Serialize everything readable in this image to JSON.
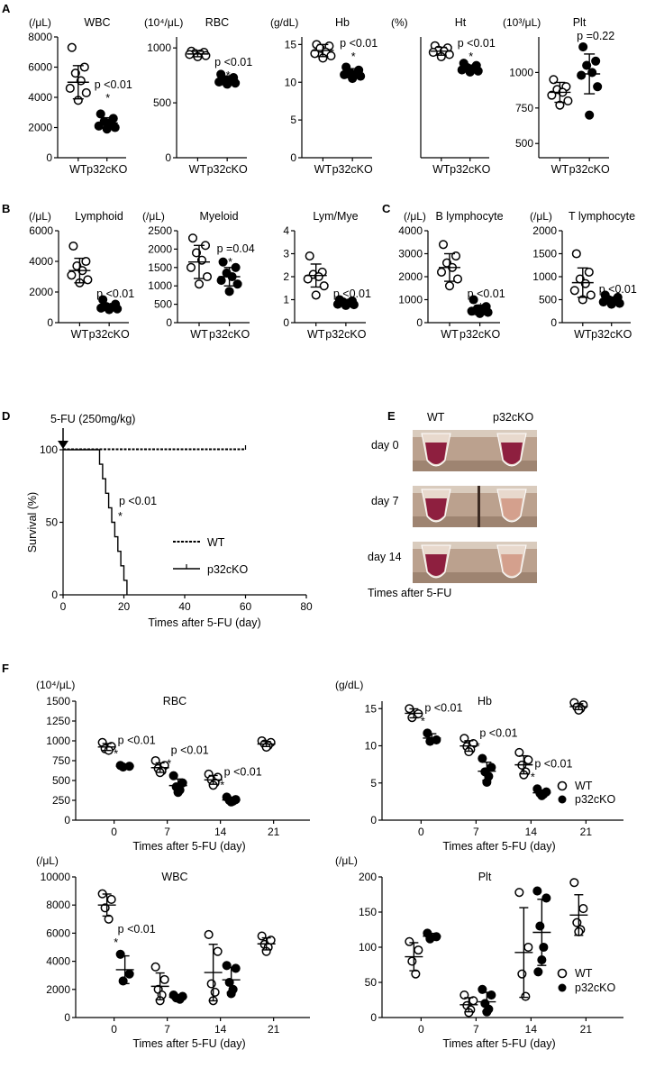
{
  "panel_labels": {
    "A": "A",
    "B": "B",
    "C": "C",
    "D": "D",
    "E": "E",
    "F": "F"
  },
  "panelD": {
    "annotation": "5-FU (250mg/kg)",
    "significance": "p <0.01",
    "star": "*"
  },
  "panelE": {
    "columns": [
      "WT",
      "p32cKO"
    ],
    "rows": [
      "day 0",
      "day 7",
      "day 14"
    ],
    "caption": "Times after 5-FU",
    "colors": {
      "blood": "#8e1f3f",
      "pale": "#d4a08d",
      "strip": "#c8a990"
    }
  },
  "chart_data": [
    {
      "id": "A-WBC",
      "type": "scatter",
      "title": "WBC",
      "unit": "(/μL)",
      "categories": [
        "WT",
        "p32cKO"
      ],
      "ylim": [
        0,
        8000
      ],
      "yticks": [
        0,
        2000,
        4000,
        6000,
        8000
      ],
      "series": [
        {
          "name": "WT",
          "values": [
            7300,
            6000,
            5600,
            5100,
            4600,
            4300,
            3800
          ],
          "mean": 5000,
          "sd": 1100
        },
        {
          "name": "p32cKO",
          "values": [
            2900,
            2600,
            2400,
            2300,
            2100,
            2000,
            1900
          ],
          "mean": 2300,
          "sd": 350
        }
      ],
      "annotation": "p <0.01",
      "star": "*"
    },
    {
      "id": "A-RBC",
      "type": "scatter",
      "title": "RBC",
      "unit": "(10⁴/μL)",
      "categories": [
        "WT",
        "p32cKO"
      ],
      "ylim": [
        0,
        1100
      ],
      "yticks": [
        0,
        500,
        1000
      ],
      "series": [
        {
          "name": "WT",
          "values": [
            970,
            960,
            950,
            945,
            940,
            930,
            920
          ],
          "mean": 945,
          "sd": 25
        },
        {
          "name": "p32cKO",
          "values": [
            760,
            730,
            710,
            700,
            690,
            680,
            670
          ],
          "mean": 705,
          "sd": 40
        }
      ],
      "annotation": "p <0.01",
      "star": "*"
    },
    {
      "id": "A-Hb",
      "type": "scatter",
      "title": "Hb",
      "unit": "(g/dL)",
      "categories": [
        "WT",
        "p32cKO"
      ],
      "ylim": [
        0,
        16
      ],
      "yticks": [
        0,
        5,
        10,
        15
      ],
      "series": [
        {
          "name": "WT",
          "values": [
            15,
            14.8,
            14.5,
            14,
            13.8,
            13.5,
            13.2
          ],
          "mean": 14.2,
          "sd": 0.8
        },
        {
          "name": "p32cKO",
          "values": [
            12,
            11.6,
            11.3,
            11.1,
            11,
            10.8,
            10.5
          ],
          "mean": 11.2,
          "sd": 0.6
        }
      ],
      "annotation": "p <0.01",
      "star": "*"
    },
    {
      "id": "A-Ht",
      "type": "scatter",
      "title": "Ht",
      "unit": "(%)",
      "categories": [
        "WT",
        "p32cKO"
      ],
      "ylim": [
        0,
        55
      ],
      "yticks": [],
      "series": [
        {
          "name": "WT",
          "values": [
            51,
            50,
            49,
            48.5,
            48,
            47,
            46
          ],
          "mean": 48.5,
          "sd": 1.8
        },
        {
          "name": "p32cKO",
          "values": [
            43,
            42,
            41,
            40.5,
            40,
            39.5,
            39
          ],
          "mean": 40.7,
          "sd": 1.5
        }
      ],
      "annotation": "p <0.01",
      "star": "*"
    },
    {
      "id": "A-Plt",
      "type": "scatter",
      "title": "Plt",
      "unit": "(10³/μL)",
      "categories": [
        "WT",
        "p32cKO"
      ],
      "ylim": [
        400,
        1250
      ],
      "yticks": [
        500,
        750,
        1000
      ],
      "series": [
        {
          "name": "WT",
          "values": [
            950,
            900,
            880,
            860,
            840,
            800,
            770
          ],
          "mean": 860,
          "sd": 70
        },
        {
          "name": "p32cKO",
          "values": [
            1180,
            1080,
            1050,
            1000,
            980,
            900,
            700
          ],
          "mean": 990,
          "sd": 140
        }
      ],
      "annotation": "p =0.22",
      "star": ""
    },
    {
      "id": "B-Lymphoid",
      "type": "scatter",
      "title": "Lymphoid",
      "unit": "(/μL)",
      "categories": [
        "WT",
        "p32cKO"
      ],
      "ylim": [
        0,
        6000
      ],
      "yticks": [
        0,
        2000,
        4000,
        6000
      ],
      "series": [
        {
          "name": "WT",
          "values": [
            5000,
            4000,
            3700,
            3400,
            3100,
            2800,
            2600
          ],
          "mean": 3400,
          "sd": 800
        },
        {
          "name": "p32cKO",
          "values": [
            1500,
            1200,
            1050,
            1000,
            950,
            900,
            850
          ],
          "mean": 1000,
          "sd": 200
        }
      ],
      "annotation": "p <0.01",
      "star": "*"
    },
    {
      "id": "B-Myeloid",
      "type": "scatter",
      "title": "Myeloid",
      "unit": "(/μL)",
      "categories": [
        "WT",
        "p32cKO"
      ],
      "ylim": [
        0,
        2500
      ],
      "yticks": [
        0,
        500,
        1000,
        1500,
        2000,
        2500
      ],
      "series": [
        {
          "name": "WT",
          "values": [
            2300,
            2100,
            1900,
            1700,
            1500,
            1250,
            1050
          ],
          "mean": 1650,
          "sd": 450
        },
        {
          "name": "p32cKO",
          "values": [
            1650,
            1500,
            1350,
            1250,
            1150,
            1050,
            850
          ],
          "mean": 1250,
          "sd": 250
        }
      ],
      "annotation": "p =0.04",
      "star": "*"
    },
    {
      "id": "B-LymMye",
      "type": "scatter",
      "title": "Lym/Mye",
      "unit": "",
      "categories": [
        "WT",
        "p32cKO"
      ],
      "ylim": [
        0,
        4
      ],
      "yticks": [
        0,
        1,
        2,
        3,
        4
      ],
      "series": [
        {
          "name": "WT",
          "values": [
            2.9,
            2.2,
            2.1,
            2.0,
            1.9,
            1.6,
            1.2
          ],
          "mean": 2.05,
          "sd": 0.5
        },
        {
          "name": "p32cKO",
          "values": [
            1.0,
            0.95,
            0.9,
            0.85,
            0.8,
            0.78,
            0.75
          ],
          "mean": 0.85,
          "sd": 0.1
        }
      ],
      "annotation": "p <0.01",
      "star": "*"
    },
    {
      "id": "C-B",
      "type": "scatter",
      "title": "B lymphocyte",
      "unit": "(/μL)",
      "categories": [
        "WT",
        "p32cKO"
      ],
      "ylim": [
        0,
        4000
      ],
      "yticks": [
        0,
        1000,
        2000,
        3000,
        4000
      ],
      "series": [
        {
          "name": "WT",
          "values": [
            3400,
            2900,
            2600,
            2400,
            2200,
            1900,
            1600
          ],
          "mean": 2400,
          "sd": 600
        },
        {
          "name": "p32cKO",
          "values": [
            1000,
            700,
            600,
            550,
            500,
            450,
            400
          ],
          "mean": 550,
          "sd": 200
        }
      ],
      "annotation": "p <0.01",
      "star": "*"
    },
    {
      "id": "C-T",
      "type": "scatter",
      "title": "T lymphocyte",
      "unit": "(/μL)",
      "categories": [
        "WT",
        "p32cKO"
      ],
      "ylim": [
        0,
        2000
      ],
      "yticks": [
        0,
        500,
        1000,
        1500,
        2000
      ],
      "series": [
        {
          "name": "WT",
          "values": [
            1500,
            1100,
            950,
            850,
            700,
            600,
            500
          ],
          "mean": 870,
          "sd": 320
        },
        {
          "name": "p32cKO",
          "values": [
            600,
            550,
            500,
            480,
            450,
            420,
            400
          ],
          "mean": 480,
          "sd": 70
        }
      ],
      "annotation": "p <0.01",
      "star": "*"
    },
    {
      "id": "D",
      "type": "line",
      "xlabel": "Times after 5-FU (day)",
      "ylabel": "Survival (%)",
      "xlim": [
        0,
        80
      ],
      "ylim": [
        0,
        100
      ],
      "xticks": [
        0,
        20,
        40,
        60,
        80
      ],
      "yticks": [
        0,
        50,
        100
      ],
      "series": [
        {
          "name": "WT",
          "points": [
            [
              0,
              100
            ],
            [
              60,
              100
            ]
          ]
        },
        {
          "name": "p32cKO",
          "points": [
            [
              0,
              100
            ],
            [
              12,
              100
            ],
            [
              12,
              90
            ],
            [
              13,
              90
            ],
            [
              13,
              80
            ],
            [
              14,
              80
            ],
            [
              14,
              70
            ],
            [
              15,
              70
            ],
            [
              15,
              60
            ],
            [
              16,
              60
            ],
            [
              16,
              50
            ],
            [
              17,
              50
            ],
            [
              17,
              40
            ],
            [
              18,
              40
            ],
            [
              18,
              30
            ],
            [
              19,
              30
            ],
            [
              19,
              20
            ],
            [
              20,
              20
            ],
            [
              20,
              10
            ],
            [
              21,
              10
            ],
            [
              21,
              0
            ]
          ]
        }
      ]
    },
    {
      "id": "F-RBC",
      "type": "scatter",
      "title": "RBC",
      "unit": "(10⁴/μL)",
      "xlabel": "Times after 5-FU (day)",
      "categories": [
        "0",
        "7",
        "14",
        "21"
      ],
      "ylim": [
        0,
        1500
      ],
      "yticks": [
        0,
        250,
        500,
        750,
        1000,
        1250,
        1500
      ],
      "series": [
        {
          "name": "WT",
          "groups": [
            [
              980,
              930,
              900,
              880
            ],
            [
              750,
              690,
              650,
              620,
              600
            ],
            [
              580,
              540,
              510,
              470,
              440
            ],
            [
              1000,
              980,
              960,
              940,
              920
            ]
          ]
        },
        {
          "name": "p32cKO",
          "groups": [
            [
              690,
              680,
              670
            ],
            [
              560,
              470,
              420,
              380,
              350
            ],
            [
              290,
              260,
              250,
              240,
              230
            ],
            []
          ]
        }
      ],
      "annotations": [
        "p <0.01",
        "p <0.01",
        "p <0.01"
      ],
      "star": "*"
    },
    {
      "id": "F-Hb",
      "type": "scatter",
      "title": "Hb",
      "unit": "(g/dL)",
      "xlabel": "Times after 5-FU (day)",
      "categories": [
        "0",
        "7",
        "14",
        "21"
      ],
      "ylim": [
        0,
        16
      ],
      "yticks": [
        0,
        5,
        10,
        15
      ],
      "series": [
        {
          "name": "WT",
          "groups": [
            [
              15,
              14.3,
              13.8
            ],
            [
              11,
              10.3,
              9.9,
              9.5,
              9.2
            ],
            [
              9.1,
              8.1,
              7.4,
              6.5,
              6.1
            ],
            [
              15.8,
              15.5,
              15.2,
              15,
              14.8
            ]
          ]
        },
        {
          "name": "p32cKO",
          "groups": [
            [
              11.7,
              10.8,
              10.6
            ],
            [
              8.3,
              7.1,
              6.5,
              5.9,
              5.1
            ],
            [
              4.2,
              3.8,
              3.6,
              3.5,
              3.3
            ],
            []
          ]
        }
      ],
      "annotations": [
        "p <0.01",
        "p <0.01",
        "p <0.01"
      ],
      "star": "*"
    },
    {
      "id": "F-WBC",
      "type": "scatter",
      "title": "WBC",
      "unit": "(/μL)",
      "xlabel": "Times after 5-FU (day)",
      "categories": [
        "0",
        "7",
        "14",
        "21"
      ],
      "ylim": [
        0,
        10000
      ],
      "yticks": [
        0,
        2000,
        4000,
        6000,
        8000,
        10000
      ],
      "series": [
        {
          "name": "WT",
          "groups": [
            [
              8800,
              8400,
              7800,
              7000
            ],
            [
              3600,
              2700,
              2000,
              1600,
              1200
            ],
            [
              5900,
              4700,
              2400,
              1800,
              1200
            ],
            [
              5800,
              5500,
              5200,
              5000,
              4700
            ]
          ]
        },
        {
          "name": "p32cKO",
          "groups": [
            [
              4500,
              3100,
              2600
            ],
            [
              1600,
              1500,
              1400,
              1300
            ],
            [
              3700,
              3500,
              2500,
              2000,
              1700
            ],
            []
          ]
        }
      ],
      "annotations": [
        "p <0.01"
      ],
      "star": "*"
    },
    {
      "id": "F-Plt",
      "type": "scatter",
      "title": "Plt",
      "unit": "(/μL)",
      "xlabel": "Times after 5-FU (day)",
      "categories": [
        "0",
        "7",
        "14",
        "21"
      ],
      "ylim": [
        0,
        200
      ],
      "yticks": [
        0,
        50,
        100,
        150,
        200
      ],
      "series": [
        {
          "name": "WT",
          "groups": [
            [
              108,
              96,
              80,
              62
            ],
            [
              32,
              24,
              17,
              11,
              7
            ],
            [
              178,
              100,
              62,
              30
            ],
            [
              192,
              155,
              135,
              125,
              122
            ]
          ]
        },
        {
          "name": "p32cKO",
          "groups": [
            [
              120,
              115,
              112
            ],
            [
              40,
              32,
              20,
              12,
              8
            ],
            [
              180,
              170,
              130,
              100,
              82,
              65
            ],
            []
          ]
        }
      ],
      "annotations": []
    }
  ],
  "legend": {
    "wt": "WT",
    "ko": "p32cKO"
  }
}
